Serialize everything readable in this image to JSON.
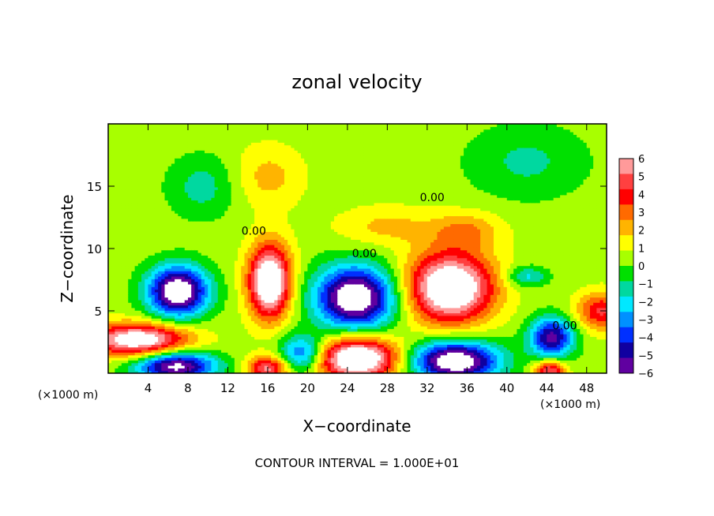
{
  "chart_data": {
    "type": "heatmap",
    "title": "zonal velocity",
    "xlabel": "X−coordinate",
    "ylabel": "Z−coordinate",
    "x_unit_left": "(×1000 m)",
    "x_unit_right": "(×1000 m)",
    "footer": "CONTOUR INTERVAL = 1.000E+01",
    "xlim": [
      0,
      50
    ],
    "ylim": [
      0,
      20
    ],
    "x_ticks": [
      4,
      8,
      12,
      16,
      20,
      24,
      28,
      32,
      36,
      40,
      44,
      48
    ],
    "y_ticks": [
      5,
      10,
      15
    ],
    "colorbar": {
      "ticks": [
        6,
        5,
        4,
        3,
        2,
        1,
        0,
        -1,
        -2,
        -3,
        -4,
        -5,
        -6
      ],
      "colors": [
        "#ff9a9a",
        "#ff4040",
        "#ff0000",
        "#ff6a00",
        "#ffb400",
        "#ffff00",
        "#a8ff00",
        "#00e000",
        "#00d8a0",
        "#00e8ff",
        "#0090ff",
        "#0030ff",
        "#1000a0",
        "#6000a0"
      ]
    },
    "contour_labels": [
      {
        "text": "0.00",
        "x": 32.5,
        "y": 13.8
      },
      {
        "text": "0.00",
        "x": 14.6,
        "y": 11.1
      },
      {
        "text": "0.00",
        "x": 25.7,
        "y": 9.3
      },
      {
        "text": "0.00",
        "x": 45.8,
        "y": 3.5
      }
    ],
    "features": [
      {
        "x": 7.0,
        "y": 6.6,
        "u": -8.0,
        "rx": 3.0,
        "ry": 2.0
      },
      {
        "x": 16.2,
        "y": 7.4,
        "u": 8.0,
        "rx": 2.1,
        "ry": 2.9
      },
      {
        "x": 24.8,
        "y": 6.1,
        "u": -8.0,
        "rx": 4.0,
        "ry": 2.5
      },
      {
        "x": 34.3,
        "y": 6.9,
        "u": 8.0,
        "rx": 4.3,
        "ry": 2.8
      },
      {
        "x": 3.0,
        "y": 2.7,
        "u": 7.0,
        "rx": 5.0,
        "ry": 1.3
      },
      {
        "x": 6.8,
        "y": 0.6,
        "u": -7.0,
        "rx": 4.0,
        "ry": 1.2
      },
      {
        "x": 16.0,
        "y": 0.4,
        "u": 5.0,
        "rx": 2.0,
        "ry": 1.0
      },
      {
        "x": 19.5,
        "y": 1.6,
        "u": -4.5,
        "rx": 2.3,
        "ry": 1.5
      },
      {
        "x": 25.0,
        "y": 1.2,
        "u": 8.0,
        "rx": 4.2,
        "ry": 1.7
      },
      {
        "x": 34.8,
        "y": 1.0,
        "u": -8.0,
        "rx": 4.4,
        "ry": 1.6
      },
      {
        "x": 44.5,
        "y": 2.9,
        "u": -6.0,
        "rx": 2.2,
        "ry": 1.6
      },
      {
        "x": 49.5,
        "y": 5.0,
        "u": 4.0,
        "rx": 2.5,
        "ry": 1.5
      },
      {
        "x": 44.3,
        "y": 0.3,
        "u": 5.0,
        "rx": 1.5,
        "ry": 0.8
      },
      {
        "x": 16.0,
        "y": 15.8,
        "u": 1.6,
        "rx": 3.5,
        "ry": 2.5
      },
      {
        "x": 9.5,
        "y": 15.0,
        "u": -1.7,
        "rx": 3.5,
        "ry": 2.5
      },
      {
        "x": 42.0,
        "y": 17.0,
        "u": -1.5,
        "rx": 6.0,
        "ry": 3.0
      },
      {
        "x": 28.0,
        "y": 11.8,
        "u": 1.5,
        "rx": 5.0,
        "ry": 1.6
      },
      {
        "x": 42.0,
        "y": 7.8,
        "u": -2.5,
        "rx": 2.0,
        "ry": 0.8
      },
      {
        "x": 36.0,
        "y": 11.5,
        "u": 2.0,
        "rx": 3.5,
        "ry": 1.5
      }
    ]
  }
}
